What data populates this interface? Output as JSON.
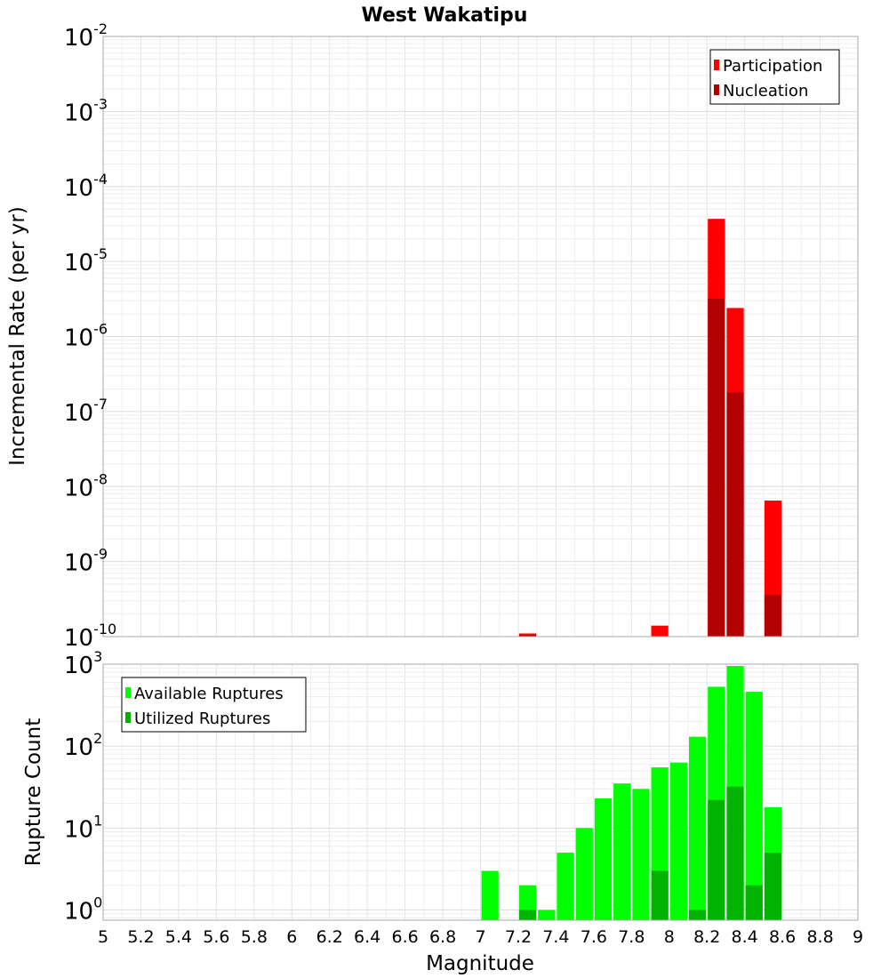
{
  "chart_data": [
    {
      "type": "bar",
      "title": "West Wakatipu",
      "xlabel": "",
      "ylabel": "Incremental Rate (per yr)",
      "xlim": [
        5,
        9
      ],
      "ylim": [
        1e-10,
        0.01
      ],
      "yscale": "log",
      "grid": true,
      "legend_position": "top-right",
      "bin_width": 0.1,
      "x": [
        7.25,
        7.95,
        8.25,
        8.35,
        8.55
      ],
      "series": [
        {
          "name": "Participation",
          "color": "#ff0000",
          "values": [
            1.1e-10,
            1.4e-10,
            3.7e-05,
            2.4e-06,
            6.5e-09
          ]
        },
        {
          "name": "Nucleation",
          "color": "#b30000",
          "values": [
            1.05e-10,
            1e-10,
            3.2e-06,
            1.8e-07,
            3.6e-10
          ]
        }
      ],
      "y_ticks": [
        {
          "base": "10",
          "exp": "-10"
        },
        {
          "base": "10",
          "exp": "-9"
        },
        {
          "base": "10",
          "exp": "-8"
        },
        {
          "base": "10",
          "exp": "-7"
        },
        {
          "base": "10",
          "exp": "-6"
        },
        {
          "base": "10",
          "exp": "-5"
        },
        {
          "base": "10",
          "exp": "-4"
        },
        {
          "base": "10",
          "exp": "-3"
        },
        {
          "base": "10",
          "exp": "-2"
        }
      ]
    },
    {
      "type": "bar",
      "title": "",
      "xlabel": "Magnitude",
      "ylabel": "Rupture Count",
      "xlim": [
        5,
        9
      ],
      "ylim": [
        0.75,
        1000
      ],
      "yscale": "log",
      "grid": true,
      "legend_position": "top-left",
      "bin_width": 0.1,
      "x": [
        7.05,
        7.25,
        7.35,
        7.45,
        7.55,
        7.65,
        7.75,
        7.85,
        7.95,
        8.05,
        8.15,
        8.25,
        8.35,
        8.45,
        8.55
      ],
      "series": [
        {
          "name": "Available Ruptures",
          "color": "#00ff00",
          "values": [
            3,
            2,
            1,
            5,
            10,
            23,
            35,
            30,
            55,
            63,
            130,
            530,
            950,
            460,
            18
          ]
        },
        {
          "name": "Utilized Ruptures",
          "color": "#00b300",
          "values": [
            0,
            1,
            0,
            0,
            0,
            0,
            0,
            0,
            3,
            0,
            1,
            22,
            32,
            2,
            5
          ]
        }
      ],
      "x_ticks": [
        "5",
        "5.2",
        "5.4",
        "5.6",
        "5.8",
        "6",
        "6.2",
        "6.4",
        "6.6",
        "6.8",
        "7",
        "7.2",
        "7.4",
        "7.6",
        "7.8",
        "8",
        "8.2",
        "8.4",
        "8.6",
        "8.8",
        "9"
      ],
      "y_ticks": [
        {
          "base": "10",
          "exp": "0"
        },
        {
          "base": "10",
          "exp": "1"
        },
        {
          "base": "10",
          "exp": "2"
        },
        {
          "base": "10",
          "exp": "3"
        }
      ]
    }
  ]
}
